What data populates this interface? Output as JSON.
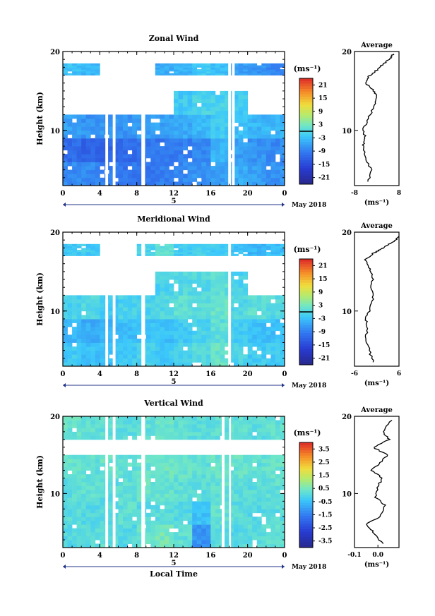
{
  "figure": {
    "x_axis_label": "Local Time",
    "date_label": "May 2018",
    "day_marker": "5",
    "x_ticks": [
      "0",
      "4",
      "8",
      "12",
      "16",
      "20",
      "0"
    ],
    "colorbar_unit": "(ms⁻¹)",
    "average_unit": "(ms⁻¹)",
    "height_label": "Height (km)",
    "profile_title": "Average"
  },
  "chart_data": [
    {
      "type": "heatmap",
      "title": "Zonal Wind",
      "xlabel": "",
      "ylabel": "Height (km)",
      "x_range_hours": [
        0,
        24
      ],
      "ylim": [
        3,
        20
      ],
      "y_ticks": [
        "10",
        "20"
      ],
      "colorbar": {
        "unit": "(ms⁻¹)",
        "ticks": [
          "21",
          "15",
          "9",
          "3",
          "-3",
          "-9",
          "-15",
          "-21"
        ],
        "range": [
          -24,
          24
        ]
      },
      "contour_level": 0,
      "data_gaps_hours": [
        [
          4.6,
          4.9
        ],
        [
          5.4,
          5.7
        ],
        [
          8.5,
          8.9
        ],
        [
          17.9,
          18.2
        ],
        [
          18.3,
          18.6
        ]
      ],
      "rows": [
        {
          "h": [
            3,
            6
          ],
          "v": [
            -8,
            -8,
            -9,
            -10,
            -10,
            -9,
            -8,
            -7,
            -6,
            -5,
            -6,
            -7
          ]
        },
        {
          "h": [
            6,
            9
          ],
          "v": [
            -11,
            -12,
            -12,
            -11,
            -10,
            -10,
            -9,
            -8,
            -4,
            -6,
            -7,
            -8
          ]
        },
        {
          "h": [
            9,
            12
          ],
          "v": [
            -6,
            -7,
            -7,
            -7,
            -6,
            -6,
            -5,
            -4,
            -2,
            -3,
            -4,
            -4
          ]
        },
        {
          "h": [
            12,
            15
          ],
          "v": [
            null,
            null,
            null,
            null,
            null,
            null,
            -2,
            -1,
            -1,
            -2,
            null,
            null
          ]
        },
        {
          "h": [
            17,
            18.5
          ],
          "v": [
            -3,
            -4,
            null,
            null,
            null,
            -5,
            -4,
            -2,
            -3,
            -6,
            -7,
            -8
          ]
        }
      ],
      "profile": {
        "title": "Average",
        "xlim": [
          -8,
          8
        ],
        "x_ticks": [
          "-8",
          "8"
        ],
        "xlabel": "(ms⁻¹)",
        "points": [
          [
            -3,
            3.5
          ],
          [
            -2,
            5
          ],
          [
            -4,
            6.5
          ],
          [
            -5,
            8
          ],
          [
            -4,
            9
          ],
          [
            -5,
            10
          ],
          [
            -3,
            11.5
          ],
          [
            -1,
            13
          ],
          [
            0,
            14.2
          ],
          [
            -1,
            15
          ],
          [
            -4,
            16
          ],
          [
            -3,
            16.8
          ],
          [
            -1,
            17.3
          ],
          [
            1,
            18
          ],
          [
            3,
            18.6
          ],
          [
            5,
            19.2
          ],
          [
            6,
            19.7
          ]
        ]
      },
      "average_profile_values": [
        -3,
        -2,
        -4,
        -5,
        -4,
        -5,
        -3,
        -1,
        0,
        -1,
        -4,
        -3,
        -1,
        1,
        3,
        5,
        6
      ]
    },
    {
      "type": "heatmap",
      "title": "Meridional Wind",
      "xlabel": "",
      "ylabel": "Height (km)",
      "x_range_hours": [
        0,
        24
      ],
      "ylim": [
        3,
        20
      ],
      "y_ticks": [
        "10",
        "20"
      ],
      "colorbar": {
        "unit": "(ms⁻¹)",
        "ticks": [
          "21",
          "15",
          "9",
          "3",
          "-3",
          "-9",
          "-15",
          "-21"
        ],
        "range": [
          -24,
          24
        ]
      },
      "contour_level": 0,
      "data_gaps_hours": [
        [
          4.6,
          4.9
        ],
        [
          5.4,
          5.7
        ],
        [
          8.5,
          8.9
        ],
        [
          17.9,
          18.2
        ]
      ],
      "rows": [
        {
          "h": [
            3,
            6
          ],
          "v": [
            -2,
            -3,
            -3,
            -2,
            -1,
            -2,
            -1,
            0,
            2,
            -1,
            -2,
            -2
          ]
        },
        {
          "h": [
            6,
            9
          ],
          "v": [
            -4,
            -5,
            -4,
            -3,
            -3,
            -3,
            -2,
            -1,
            1,
            -2,
            -3,
            -3
          ]
        },
        {
          "h": [
            9,
            12
          ],
          "v": [
            -1,
            0,
            -2,
            -1,
            -1,
            0,
            1,
            1,
            2,
            0,
            1,
            0
          ]
        },
        {
          "h": [
            12,
            15
          ],
          "v": [
            null,
            null,
            null,
            null,
            null,
            -1,
            0,
            0,
            1,
            -1,
            null,
            null
          ]
        },
        {
          "h": [
            17,
            18.5
          ],
          "v": [
            -2,
            -2,
            null,
            null,
            -1,
            1,
            -2,
            -1,
            -2,
            -3,
            -4,
            -3
          ]
        }
      ],
      "profile": {
        "title": "Average",
        "xlim": [
          -6,
          6
        ],
        "x_ticks": [
          "-6",
          "6"
        ],
        "xlabel": "(ms⁻¹)",
        "points": [
          [
            -1,
            3.5
          ],
          [
            -2,
            5
          ],
          [
            -3,
            6.5
          ],
          [
            -2.5,
            8
          ],
          [
            -3,
            9
          ],
          [
            -2,
            10
          ],
          [
            -1,
            11.5
          ],
          [
            -1.5,
            13
          ],
          [
            -1,
            14.5
          ],
          [
            -2,
            15.5
          ],
          [
            -3,
            16.5
          ],
          [
            -1,
            17.3
          ],
          [
            1,
            17.8
          ],
          [
            3,
            18.4
          ],
          [
            5,
            18.9
          ],
          [
            6,
            19.5
          ]
        ]
      },
      "average_profile_values": [
        -1,
        -2,
        -3,
        -2.5,
        -3,
        -2,
        -1,
        -1.5,
        -1,
        -2,
        -3,
        -1,
        1,
        3,
        5,
        6
      ]
    },
    {
      "type": "heatmap",
      "title": "Vertical Wind",
      "xlabel": "Local Time",
      "ylabel": "Height (km)",
      "x_range_hours": [
        0,
        24
      ],
      "ylim": [
        3,
        20
      ],
      "y_ticks": [
        "10",
        "20"
      ],
      "colorbar": {
        "unit": "(ms⁻¹)",
        "ticks": [
          "3.5",
          "2.5",
          "1.5",
          "0.5",
          "-0.5",
          "-1.5",
          "-2.5",
          "-3.5"
        ],
        "range": [
          -4,
          4
        ]
      },
      "data_gaps_hours": [
        [
          4.6,
          4.9
        ],
        [
          5.4,
          5.7
        ],
        [
          8.5,
          8.9
        ],
        [
          17.2,
          17.5
        ],
        [
          18.0,
          18.2
        ]
      ],
      "rows": [
        {
          "h": [
            3,
            6
          ],
          "v": [
            0.0,
            0.1,
            0.2,
            0.0,
            0.3,
            0.5,
            0.2,
            -1.2,
            0.1,
            0.0,
            0.1,
            0.2
          ]
        },
        {
          "h": [
            6,
            9
          ],
          "v": [
            0.1,
            0.0,
            0.1,
            0.2,
            0.0,
            0.1,
            0.0,
            -0.5,
            0.2,
            0.1,
            0.0,
            0.1
          ]
        },
        {
          "h": [
            9,
            12
          ],
          "v": [
            0.1,
            0.2,
            0.1,
            0.2,
            0.3,
            0.3,
            0.2,
            0.1,
            0.2,
            0.1,
            0.1,
            0.2
          ]
        },
        {
          "h": [
            12,
            15
          ],
          "v": [
            0.3,
            0.2,
            0.3,
            0.2,
            0.3,
            0.4,
            0.3,
            0.2,
            0.3,
            0.3,
            0.2,
            0.3
          ]
        },
        {
          "h": [
            15,
            17
          ],
          "v": [
            null,
            null,
            null,
            null,
            null,
            null,
            null,
            null,
            null,
            null,
            null,
            null
          ]
        },
        {
          "h": [
            17,
            20
          ],
          "v": [
            0.3,
            0.2,
            0.2,
            0.1,
            0.2,
            0.3,
            0.2,
            0.1,
            0.2,
            0.2,
            0.1,
            0.2
          ]
        }
      ],
      "profile": {
        "title": "Average",
        "xlim": [
          -0.1,
          0.09
        ],
        "x_ticks": [
          "-0.1",
          "0.0"
        ],
        "xlabel": "(ms⁻¹)",
        "points": [
          [
            0.02,
            3.5
          ],
          [
            -0.02,
            5
          ],
          [
            -0.05,
            6
          ],
          [
            0.01,
            7
          ],
          [
            0.03,
            8.5
          ],
          [
            -0.01,
            9.5
          ],
          [
            0.0,
            11
          ],
          [
            0.02,
            12
          ],
          [
            -0.03,
            13
          ],
          [
            0.01,
            14
          ],
          [
            0.04,
            15
          ],
          [
            -0.02,
            16
          ],
          [
            0.05,
            17
          ],
          [
            0.02,
            18
          ],
          [
            0.06,
            19.5
          ]
        ]
      },
      "average_profile_values": [
        0.02,
        -0.02,
        -0.05,
        0.01,
        0.03,
        -0.01,
        0.0,
        0.02,
        -0.03,
        0.01,
        0.04,
        -0.02,
        0.05,
        0.02,
        0.06
      ]
    }
  ]
}
